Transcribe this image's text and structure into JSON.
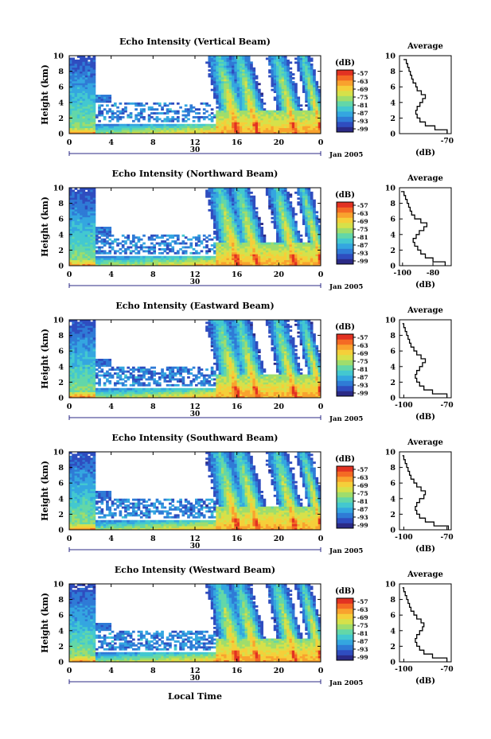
{
  "colorbar": {
    "unit": "(dB)",
    "ticks": [
      "-57",
      "-63",
      "-69",
      "-75",
      "-81",
      "-87",
      "-93",
      "-99"
    ],
    "colors": [
      "#2b2a86",
      "#2f4dbf",
      "#2f7bd6",
      "#34a6e0",
      "#43c8d0",
      "#63d7a8",
      "#9fdd6c",
      "#d6e14a",
      "#f5cf3a",
      "#f9a22e",
      "#f46a24",
      "#e23222"
    ]
  },
  "labels": {
    "y_axis": "Height (km)",
    "date": "Jan 2005",
    "day_label": "30",
    "local_time": "Local Time",
    "average_title": "Average",
    "average_unit": "(dB)"
  },
  "chart_data": [
    {
      "type": "heatmap",
      "title": "Echo Intensity (Vertical Beam)",
      "ylabel": "Height (km)",
      "xlabel": "Local Time",
      "x_ticks": [
        "0",
        "4",
        "8",
        "12",
        "16",
        "20",
        "0"
      ],
      "y_ticks": [
        "0",
        "2",
        "4",
        "6",
        "8",
        "10"
      ],
      "ylim": [
        0,
        10
      ],
      "xlim": [
        0,
        24
      ],
      "zlim": [
        -99,
        -57
      ],
      "profile": {
        "title": "Average",
        "xlabel": "(dB)",
        "x_ticks": [
          "-70"
        ],
        "xlim": [
          -105,
          -67
        ],
        "heights": [
          0,
          0.5,
          1,
          1.5,
          2,
          2.5,
          3,
          3.5,
          4,
          4.5,
          5,
          5.5,
          6,
          6.5,
          7,
          7.5,
          8,
          8.5,
          9,
          9.5
        ],
        "values": [
          -70,
          -79,
          -86,
          -90,
          -92,
          -93,
          -92,
          -90,
          -88,
          -86,
          -89,
          -92,
          -93,
          -95,
          -96,
          -97,
          -98,
          -99,
          -100,
          -102
        ]
      }
    },
    {
      "type": "heatmap",
      "title": "Echo Intensity (Northward Beam)",
      "ylabel": "Height (km)",
      "xlabel": "Local Time",
      "x_ticks": [
        "0",
        "4",
        "8",
        "12",
        "16",
        "20",
        "0"
      ],
      "y_ticks": [
        "0",
        "2",
        "4",
        "6",
        "8",
        "10"
      ],
      "ylim": [
        0,
        10
      ],
      "xlim": [
        0,
        24
      ],
      "zlim": [
        -99,
        -57
      ],
      "profile": {
        "title": "Average",
        "xlabel": "(dB)",
        "x_ticks": [
          "-100",
          "-80"
        ],
        "xlim": [
          -102,
          -68
        ],
        "heights": [
          0,
          0.5,
          1,
          1.5,
          2,
          2.5,
          3,
          3.5,
          4,
          4.5,
          5,
          5.5,
          6,
          6.5,
          7,
          7.5,
          8,
          8.5,
          9,
          9.5
        ],
        "values": [
          -72,
          -80,
          -85,
          -88,
          -90,
          -92,
          -93,
          -91,
          -89,
          -86,
          -84,
          -88,
          -92,
          -94,
          -95,
          -96,
          -97,
          -98,
          -99,
          -101
        ]
      }
    },
    {
      "type": "heatmap",
      "title": "Echo Intensity (Eastward Beam)",
      "ylabel": "Height (km)",
      "xlabel": "Local Time",
      "x_ticks": [
        "0",
        "4",
        "8",
        "12",
        "16",
        "20",
        "0"
      ],
      "y_ticks": [
        "0",
        "2",
        "4",
        "6",
        "8",
        "10"
      ],
      "ylim": [
        0,
        10
      ],
      "xlim": [
        0,
        24
      ],
      "zlim": [
        -99,
        -57
      ],
      "profile": {
        "title": "Average",
        "xlabel": "(dB)",
        "x_ticks": [
          "-100",
          "-70"
        ],
        "xlim": [
          -103,
          -67
        ],
        "heights": [
          0,
          0.5,
          1,
          1.5,
          2,
          2.5,
          3,
          3.5,
          4,
          4.5,
          5,
          5.5,
          6,
          6.5,
          7,
          7.5,
          8,
          8.5,
          9,
          9.5
        ],
        "values": [
          -70,
          -80,
          -86,
          -89,
          -91,
          -92,
          -91,
          -89,
          -87,
          -85,
          -88,
          -91,
          -93,
          -95,
          -96,
          -97,
          -98,
          -99,
          -100,
          -101
        ]
      }
    },
    {
      "type": "heatmap",
      "title": "Echo Intensity (Southward Beam)",
      "ylabel": "Height (km)",
      "xlabel": "Local Time",
      "x_ticks": [
        "0",
        "4",
        "8",
        "12",
        "16",
        "20",
        "0"
      ],
      "y_ticks": [
        "0",
        "2",
        "4",
        "6",
        "8",
        "10"
      ],
      "ylim": [
        0,
        10
      ],
      "xlim": [
        0,
        24
      ],
      "zlim": [
        -99,
        -57
      ],
      "profile": {
        "title": "Average",
        "xlabel": "(dB)",
        "x_ticks": [
          "-100",
          "-70"
        ],
        "xlim": [
          -103,
          -67
        ],
        "heights": [
          0,
          0.5,
          1,
          1.5,
          2,
          2.5,
          3,
          3.5,
          4,
          4.5,
          5,
          5.5,
          6,
          6.5,
          7,
          7.5,
          8,
          8.5,
          9,
          9.5
        ],
        "values": [
          -69,
          -79,
          -85,
          -89,
          -91,
          -92,
          -91,
          -89,
          -86,
          -85,
          -88,
          -91,
          -93,
          -95,
          -96,
          -97,
          -98,
          -99,
          -100,
          -101
        ]
      }
    },
    {
      "type": "heatmap",
      "title": "Echo Intensity (Westward Beam)",
      "ylabel": "Height (km)",
      "xlabel": "Local Time",
      "x_ticks": [
        "0",
        "4",
        "8",
        "12",
        "16",
        "20",
        "0"
      ],
      "y_ticks": [
        "0",
        "2",
        "4",
        "6",
        "8",
        "10"
      ],
      "ylim": [
        0,
        10
      ],
      "xlim": [
        0,
        24
      ],
      "zlim": [
        -99,
        -57
      ],
      "profile": {
        "title": "Average",
        "xlabel": "(dB)",
        "x_ticks": [
          "-100",
          "-70"
        ],
        "xlim": [
          -103,
          -67
        ],
        "heights": [
          0,
          0.5,
          1,
          1.5,
          2,
          2.5,
          3,
          3.5,
          4,
          4.5,
          5,
          5.5,
          6,
          6.5,
          7,
          7.5,
          8,
          8.5,
          9,
          9.5
        ],
        "values": [
          -70,
          -80,
          -86,
          -89,
          -91,
          -92,
          -91,
          -89,
          -87,
          -86,
          -88,
          -91,
          -93,
          -95,
          -96,
          -97,
          -98,
          -99,
          -100,
          -101
        ]
      }
    }
  ]
}
